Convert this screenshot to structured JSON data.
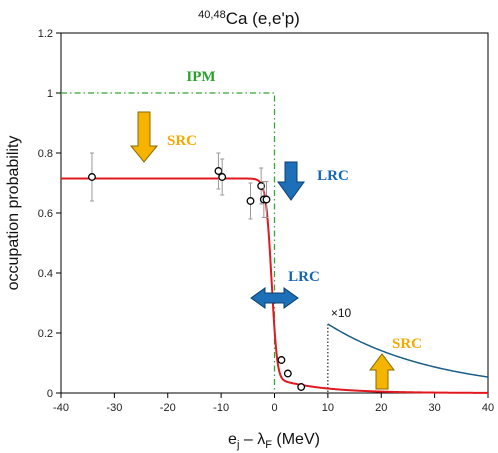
{
  "chart_data": {
    "type": "scatter",
    "title_html": {
      "sup": "40,48",
      "main": "Ca (e,e'p)"
    },
    "xlabel": {
      "main": "e",
      "sub1": "j",
      "middle": " – λ",
      "sub2": "F",
      "tail": " (MeV)"
    },
    "ylabel": "occupation probability",
    "xlim": [
      -40,
      40
    ],
    "ylim": [
      0,
      1.2
    ],
    "xticks": [
      -40,
      -30,
      -20,
      -10,
      0,
      10,
      20,
      30,
      40
    ],
    "yticks": [
      0,
      0.2,
      0.4,
      0.6,
      0.8,
      1,
      1.2
    ],
    "ytick_labels": [
      "0",
      "0.2",
      "0.4",
      "0.6",
      "0.8",
      "1",
      "1.2"
    ],
    "grid": false,
    "series": [
      {
        "kind": "points",
        "x": [
          -34.2,
          -10.5,
          -9.8,
          -4.5,
          -2.5,
          -2.0,
          -1.5,
          1.3,
          2.5,
          5.0
        ],
        "y": [
          0.72,
          0.74,
          0.72,
          0.64,
          0.69,
          0.645,
          0.645,
          0.11,
          0.065,
          0.02
        ],
        "err": [
          0.08,
          0.06,
          0.06,
          0.06,
          0.06,
          0.06,
          0.06,
          0,
          0,
          0
        ],
        "color": "#000000"
      },
      {
        "kind": "curve",
        "shape": "fermi",
        "color": "#e0191f",
        "params": {
          "a": 0.715,
          "x0": -0.5,
          "w": 0.55,
          "tail_amp": 0.027,
          "tail_decay": 8.5,
          "tail_center": 5.0
        }
      },
      {
        "kind": "curve",
        "shape": "decay",
        "color": "#1b5e85",
        "params": {
          "start": 10,
          "y0": 0.23,
          "decay": 20.5
        }
      },
      {
        "kind": "ipm_step",
        "color": "#34a834",
        "params": {
          "level": 1.0,
          "edge": 0
        }
      }
    ],
    "annotations": {
      "ipm": "IPM",
      "src_top": "SRC",
      "lrc_top": "LRC",
      "lrc_mid": "LRC",
      "src_bottom": "SRC",
      "times10": "×10"
    },
    "colors": {
      "src": "#f2a900",
      "lrc": "#1565b6",
      "ipm": "#2ca02c",
      "arrow_yellow": "#f4b400",
      "arrow_blue": "#1d6fb8"
    }
  }
}
